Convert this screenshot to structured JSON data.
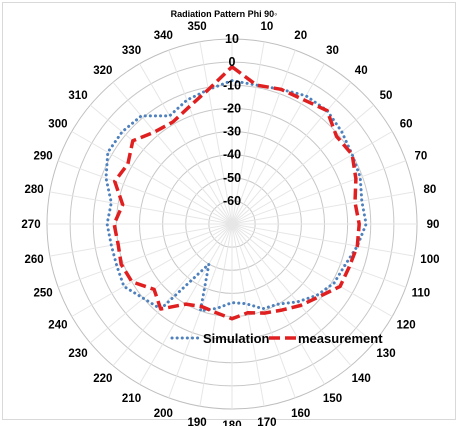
{
  "chart_data": {
    "type": "radar",
    "title": "Radiation Pattern Phi 90◦",
    "angles": [
      0,
      10,
      20,
      30,
      40,
      50,
      60,
      70,
      80,
      90,
      100,
      110,
      120,
      130,
      140,
      150,
      160,
      170,
      180,
      190,
      200,
      210,
      220,
      230,
      240,
      250,
      260,
      270,
      280,
      290,
      300,
      310,
      320,
      330,
      340,
      350
    ],
    "angle_labels": [
      "0",
      "10",
      "20",
      "30",
      "40",
      "50",
      "60",
      "70",
      "80",
      "90",
      "100",
      "110",
      "120",
      "130",
      "140",
      "150",
      "160",
      "170",
      "180",
      "190",
      "200",
      "210",
      "220",
      "230",
      "240",
      "250",
      "260",
      "270",
      "280",
      "290",
      "300",
      "310",
      "320",
      "330",
      "340",
      "350"
    ],
    "r_ticks": [
      -60,
      -50,
      -40,
      -30,
      -20,
      -10,
      0,
      10
    ],
    "r_tick_labels": [
      "-60",
      "-50",
      "-40",
      "-30",
      "-20",
      "-10",
      "0",
      "10"
    ],
    "rlim": [
      -70,
      10
    ],
    "grid": true,
    "legend_position": "bottom-center",
    "series": [
      {
        "name": "Simulation",
        "color": "#4f81bd",
        "style": "dotted",
        "values": [
          -8,
          -9,
          -8,
          -6,
          -6,
          -8,
          -10,
          -11,
          -13,
          -12,
          -15,
          -18,
          -19,
          -22,
          -26,
          -30,
          -31,
          -35,
          -36,
          -33,
          -30,
          -50,
          -22,
          -20,
          -16,
          -17,
          -17,
          -16,
          -17,
          -12,
          -8,
          -8,
          -9,
          -16,
          -13,
          -11
        ]
      },
      {
        "name": "measurement",
        "color": "#e02020",
        "style": "dashed",
        "values": [
          -2,
          -9,
          -8,
          -8,
          -6,
          -11,
          -10,
          -13,
          -16,
          -15,
          -15,
          -16,
          -16,
          -21,
          -24,
          -27,
          -29,
          -31,
          -29,
          -31,
          -32,
          -30,
          -22,
          -26,
          -20,
          -19,
          -20,
          -19,
          -22,
          -16,
          -18,
          -14,
          -18,
          -19,
          -16,
          -11
        ]
      }
    ]
  }
}
